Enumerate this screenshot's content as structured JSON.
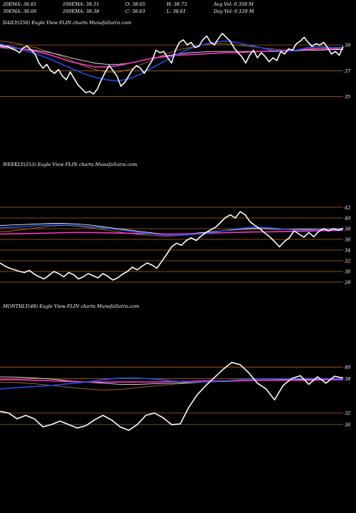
{
  "header": {
    "row1": [
      "20EMA: 38.81",
      "100EMA: 38.51",
      "O: 38.65",
      "H: 38.73",
      "Avg Vol: 0.358  M"
    ],
    "row2": [
      "30EMA: 38.66",
      "200EMA: 38.38",
      "C: 38.63",
      "L: 38.61",
      "Day Vol: 0.129 M"
    ]
  },
  "colors": {
    "background": "#000000",
    "price": "#ffffff",
    "ema_fast": "#1f4fe8",
    "ema_long1": "#ff33cc",
    "ema_long2": "#e8e8e8",
    "ema_mid": "#b06a2a",
    "level_line": "#b5651d"
  },
  "chart_data": [
    {
      "type": "line",
      "title": "DAILY(250) Eagle  View  FLIN  charts MunafaSutra.com",
      "yticks": [
        39,
        37,
        35
      ],
      "ylim": [
        34.2,
        40.5
      ],
      "series": [
        {
          "key": "price",
          "values": [
            39.0,
            38.9,
            38.9,
            38.7,
            38.6,
            38.4,
            38.8,
            38.9,
            38.6,
            38.3,
            37.6,
            37.2,
            37.5,
            37.0,
            36.8,
            37.1,
            36.6,
            36.3,
            36.9,
            36.4,
            35.9,
            35.6,
            35.3,
            35.4,
            35.2,
            35.6,
            36.3,
            36.9,
            37.4,
            37.0,
            36.6,
            35.8,
            36.1,
            36.6,
            37.1,
            37.4,
            37.2,
            36.8,
            37.3,
            37.8,
            38.6,
            38.4,
            38.5,
            38.0,
            37.6,
            38.6,
            39.2,
            39.4,
            39.0,
            39.2,
            38.8,
            38.9,
            39.4,
            39.7,
            39.2,
            39.0,
            39.5,
            39.9,
            39.6,
            39.3,
            38.8,
            38.4,
            38.1,
            37.6,
            38.2,
            38.6,
            38.0,
            38.4,
            38.1,
            37.7,
            38.0,
            37.8,
            38.5,
            38.3,
            38.7,
            38.6,
            39.1,
            39.3,
            39.6,
            39.2,
            38.9,
            39.1,
            39.0,
            39.2,
            38.8,
            38.3,
            38.5,
            38.2,
            38.9
          ]
        },
        {
          "key": "ema_fast",
          "values": [
            39.1,
            38.9,
            38.6,
            38.3,
            38.0,
            37.6,
            37.2,
            36.8,
            36.5,
            36.3,
            36.2,
            36.4,
            36.8,
            37.3,
            37.8,
            38.3,
            38.7,
            39.0,
            39.2,
            39.3,
            39.2,
            39.0,
            38.8,
            38.6,
            38.5,
            38.6,
            38.8,
            38.9,
            38.8,
            38.8
          ]
        },
        {
          "key": "ema_long1",
          "values": [
            38.9,
            38.8,
            38.7,
            38.5,
            38.3,
            38.0,
            37.7,
            37.5,
            37.3,
            37.3,
            37.4,
            37.6,
            37.8,
            38.0,
            38.1,
            38.2,
            38.25,
            38.3,
            38.35,
            38.4,
            38.4,
            38.45,
            38.5,
            38.55,
            38.6,
            38.6,
            38.65,
            38.7,
            38.7,
            38.75
          ]
        },
        {
          "key": "ema_long2",
          "values": [
            38.8,
            38.75,
            38.7,
            38.6,
            38.45,
            38.25,
            38.0,
            37.8,
            37.6,
            37.5,
            37.5,
            37.6,
            37.8,
            38.0,
            38.15,
            38.3,
            38.4,
            38.45,
            38.5,
            38.5,
            38.5,
            38.5,
            38.5,
            38.5,
            38.5,
            38.55,
            38.6,
            38.6,
            38.65,
            38.65
          ]
        },
        {
          "key": "ema_mid",
          "values": [
            39.3,
            39.2,
            39.0,
            38.8,
            38.5,
            38.2,
            37.8,
            37.4,
            37.1,
            36.9,
            36.9,
            37.1,
            37.5,
            37.9,
            38.3,
            38.6,
            38.8,
            39.0,
            39.1,
            39.1,
            39.0,
            38.9,
            38.8,
            38.7,
            38.6,
            38.6,
            38.7,
            38.8,
            38.8,
            38.75
          ]
        }
      ]
    },
    {
      "type": "line",
      "title": "WEEKLY(253) Eagle  View  FLIN  charts MunafaSutra.com",
      "yticks": [
        42,
        40,
        38,
        36,
        34,
        32,
        30,
        28
      ],
      "ylim": [
        27.2,
        42.8
      ],
      "series": [
        {
          "key": "price",
          "values": [
            31.6,
            31.0,
            30.6,
            30.3,
            30.0,
            29.8,
            30.2,
            29.5,
            29.0,
            28.6,
            29.3,
            30.0,
            29.6,
            29.0,
            29.8,
            29.4,
            28.6,
            29.0,
            29.6,
            29.2,
            28.8,
            29.6,
            29.1,
            28.4,
            28.8,
            29.5,
            30.0,
            30.8,
            30.3,
            31.0,
            31.6,
            31.2,
            30.6,
            31.9,
            33.2,
            34.6,
            35.3,
            34.9,
            35.8,
            36.3,
            35.8,
            36.6,
            37.3,
            37.8,
            38.3,
            39.2,
            40.1,
            40.6,
            40.0,
            41.2,
            40.6,
            39.3,
            38.6,
            38.0,
            37.2,
            36.5,
            35.6,
            34.6,
            35.6,
            36.3,
            37.6,
            37.0,
            36.4,
            37.3,
            36.5,
            37.5,
            38.0,
            37.6,
            38.0,
            37.7,
            38.1
          ]
        },
        {
          "key": "ema_fast",
          "values": [
            38.2,
            38.3,
            38.4,
            38.6,
            38.7,
            38.7,
            38.6,
            38.4,
            38.2,
            37.9,
            37.6,
            37.3,
            37.0,
            36.8,
            36.8,
            36.9,
            37.1,
            37.4,
            37.8,
            38.1,
            38.3,
            38.2,
            38.0,
            37.8,
            37.7,
            37.8,
            37.9,
            37.9
          ]
        },
        {
          "key": "ema_long1",
          "values": [
            37.0,
            37.05,
            37.1,
            37.15,
            37.2,
            37.25,
            37.3,
            37.3,
            37.25,
            37.2,
            37.15,
            37.1,
            37.05,
            37.0,
            37.0,
            37.05,
            37.1,
            37.2,
            37.3,
            37.35,
            37.4,
            37.4,
            37.45,
            37.5,
            37.55,
            37.6,
            37.65,
            37.7
          ]
        },
        {
          "key": "ema_long2",
          "values": [
            38.6,
            38.7,
            38.8,
            38.9,
            39.0,
            39.0,
            38.9,
            38.7,
            38.4,
            38.1,
            37.8,
            37.5,
            37.2,
            37.0,
            37.0,
            37.1,
            37.3,
            37.5,
            37.7,
            37.9,
            38.0,
            38.0,
            37.9,
            37.9,
            37.9,
            37.9,
            38.0,
            38.0
          ]
        },
        {
          "key": "ema_mid",
          "values": [
            37.4,
            37.6,
            37.9,
            38.2,
            38.5,
            38.6,
            38.5,
            38.2,
            37.9,
            37.5,
            37.2,
            36.9,
            36.7,
            36.6,
            36.7,
            36.9,
            37.2,
            37.5,
            37.8,
            38.0,
            38.1,
            38.0,
            37.9,
            37.8,
            37.8,
            37.8,
            37.9,
            37.9
          ]
        }
      ]
    },
    {
      "type": "line",
      "title": "MONTHLY(48) Eagle  View  FLIN  charts MunafaSutra.com",
      "yticks": [
        40,
        38,
        32,
        30
      ],
      "ylim": [
        28.0,
        42.5
      ],
      "series": [
        {
          "key": "price",
          "values": [
            32.3,
            32.0,
            31.0,
            31.6,
            31.0,
            29.6,
            30.0,
            30.6,
            30.0,
            29.4,
            29.8,
            30.8,
            31.6,
            30.8,
            29.6,
            29.0,
            30.0,
            31.6,
            32.0,
            31.2,
            30.0,
            30.1,
            33.0,
            35.2,
            36.8,
            38.2,
            39.6,
            40.8,
            40.4,
            39.0,
            37.2,
            36.2,
            34.3,
            36.8,
            38.0,
            38.5,
            37.0,
            38.3,
            37.2,
            38.4,
            38.1
          ]
        },
        {
          "key": "ema_fast",
          "values": [
            36.2,
            36.4,
            36.6,
            36.8,
            37.1,
            37.4,
            37.8,
            38.1,
            38.1,
            37.9,
            37.6,
            37.4,
            37.4,
            37.6,
            37.8,
            37.9,
            37.9,
            38.0,
            38.0,
            38.0,
            38.0
          ]
        },
        {
          "key": "ema_long1",
          "values": [
            37.8,
            37.8,
            37.7,
            37.6,
            37.5,
            37.4,
            37.4,
            37.4,
            37.4,
            37.4,
            37.5,
            37.5,
            37.6,
            37.6,
            37.6,
            37.7,
            37.7,
            37.7,
            37.7,
            37.8,
            37.8
          ]
        },
        {
          "key": "ema_long2",
          "values": [
            38.3,
            38.25,
            38.1,
            37.9,
            37.6,
            37.4,
            37.2,
            37.0,
            37.0,
            37.1,
            37.2,
            37.3,
            37.4,
            37.5,
            37.6,
            37.7,
            37.8,
            37.8,
            37.9,
            37.9,
            37.9
          ]
        },
        {
          "key": "ema_mid",
          "values": [
            37.4,
            37.3,
            37.1,
            36.8,
            36.5,
            36.2,
            36.0,
            36.1,
            36.4,
            36.7,
            37.0,
            37.2,
            37.4,
            37.5,
            37.6,
            37.7,
            37.8,
            37.8,
            37.8,
            37.8,
            37.8
          ]
        }
      ]
    }
  ]
}
